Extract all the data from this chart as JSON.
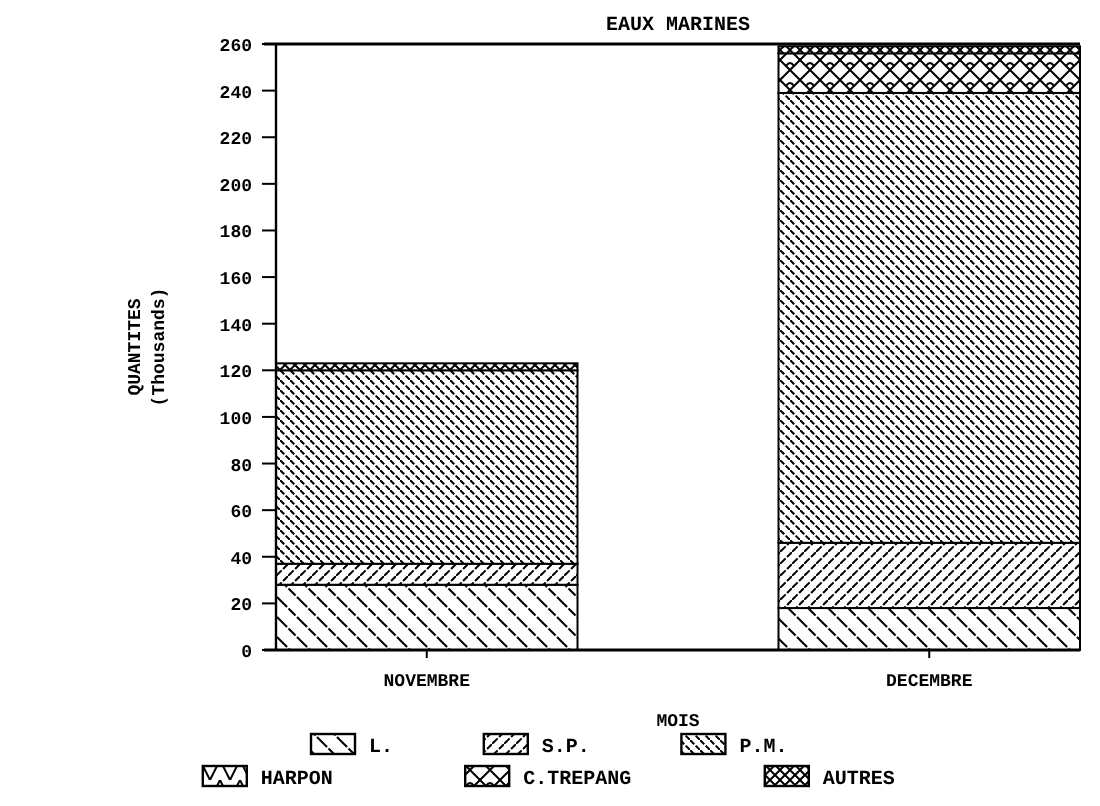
{
  "chart_data": {
    "type": "bar",
    "title": "EAUX MARINES",
    "xlabel": "MOIS",
    "ylabel": "QUANTITES\n(Thousands)",
    "categories": [
      "NOVEMBRE",
      "DECEMBRE"
    ],
    "stacked": true,
    "ylim": [
      0,
      260
    ],
    "yticks": [
      0,
      20,
      40,
      60,
      80,
      100,
      120,
      140,
      160,
      180,
      200,
      220,
      240,
      260
    ],
    "legend": "bottom",
    "series": [
      {
        "name": "L.",
        "color": "#000000",
        "values": [
          28,
          18
        ]
      },
      {
        "name": "S.P.",
        "color": "#000000",
        "values": [
          9,
          28
        ]
      },
      {
        "name": "P.M.",
        "color": "#000000",
        "values": [
          83,
          193
        ]
      },
      {
        "name": "HARPON",
        "color": "#000000",
        "values": [
          null,
          null
        ]
      },
      {
        "name": "C.TREPANG",
        "color": "#000000",
        "values": [
          null,
          17
        ]
      },
      {
        "name": "AUTRES",
        "color": "#000000",
        "values": [
          3,
          3
        ]
      }
    ]
  }
}
